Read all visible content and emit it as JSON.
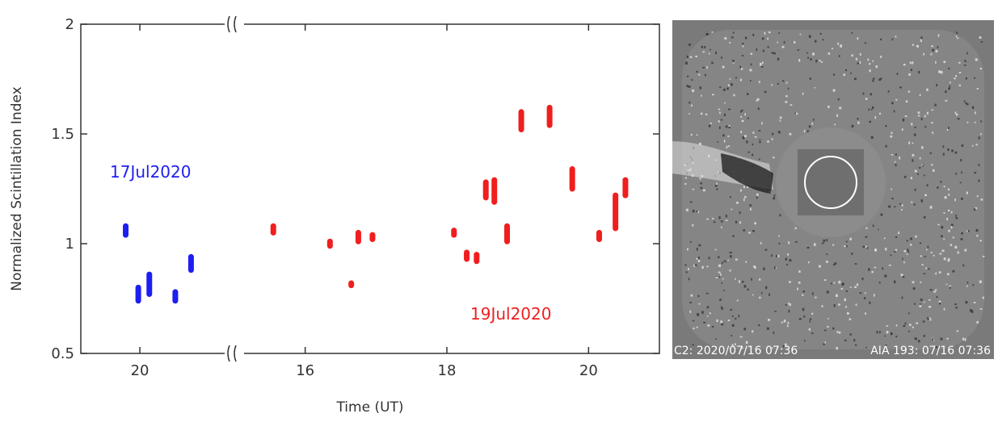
{
  "chart_data": {
    "type": "scatter",
    "xlabel": "Time (UT)",
    "ylabel": "Normalized Scintillation Index",
    "ylim": [
      0.5,
      2
    ],
    "y_ticks": [
      "0.5",
      "1",
      "1.5",
      "2"
    ],
    "y_tick_values": [
      0.5,
      1,
      1.5,
      2
    ],
    "axis_break": "between 17Jul2020 and 19Jul2020 segments",
    "segments": [
      {
        "name": "17Jul2020",
        "color": "#1e1ef0",
        "x_ticks": [
          "20"
        ],
        "x_tick_values": [
          20
        ],
        "xlim": [
          19.25,
          21.2
        ],
        "points": [
          {
            "x": 19.82,
            "y_low": 1.04,
            "y_high": 1.08
          },
          {
            "x": 19.98,
            "y_low": 0.74,
            "y_high": 0.8
          },
          {
            "x": 20.12,
            "y_low": 0.77,
            "y_high": 0.86
          },
          {
            "x": 20.45,
            "y_low": 0.74,
            "y_high": 0.78
          },
          {
            "x": 20.65,
            "y_low": 0.88,
            "y_high": 0.94
          }
        ]
      },
      {
        "name": "19Jul2020",
        "color": "#f01e1e",
        "x_ticks": [
          "16",
          "18",
          "20"
        ],
        "x_tick_values": [
          16,
          18,
          20
        ],
        "xlim": [
          15.0,
          21.0
        ],
        "points": [
          {
            "x": 15.55,
            "y_low": 1.05,
            "y_high": 1.08
          },
          {
            "x": 16.35,
            "y_low": 0.99,
            "y_high": 1.01
          },
          {
            "x": 16.65,
            "y_low": 0.81,
            "y_high": 0.82
          },
          {
            "x": 16.75,
            "y_low": 1.01,
            "y_high": 1.05
          },
          {
            "x": 16.95,
            "y_low": 1.02,
            "y_high": 1.04
          },
          {
            "x": 18.1,
            "y_low": 1.04,
            "y_high": 1.06
          },
          {
            "x": 18.28,
            "y_low": 0.93,
            "y_high": 0.96
          },
          {
            "x": 18.42,
            "y_low": 0.92,
            "y_high": 0.95
          },
          {
            "x": 18.55,
            "y_low": 1.21,
            "y_high": 1.28
          },
          {
            "x": 18.67,
            "y_low": 1.19,
            "y_high": 1.29
          },
          {
            "x": 18.85,
            "y_low": 1.01,
            "y_high": 1.08
          },
          {
            "x": 19.05,
            "y_low": 1.52,
            "y_high": 1.6
          },
          {
            "x": 19.45,
            "y_low": 1.54,
            "y_high": 1.62
          },
          {
            "x": 19.77,
            "y_low": 1.25,
            "y_high": 1.34
          },
          {
            "x": 20.15,
            "y_low": 1.02,
            "y_high": 1.05
          },
          {
            "x": 20.38,
            "y_low": 1.07,
            "y_high": 1.22
          },
          {
            "x": 20.52,
            "y_low": 1.22,
            "y_high": 1.29
          }
        ]
      }
    ]
  },
  "image_panel": {
    "caption_left": "C2: 2020/07/16 07:36",
    "caption_right": "AIA 193: 07/16 07:36"
  }
}
